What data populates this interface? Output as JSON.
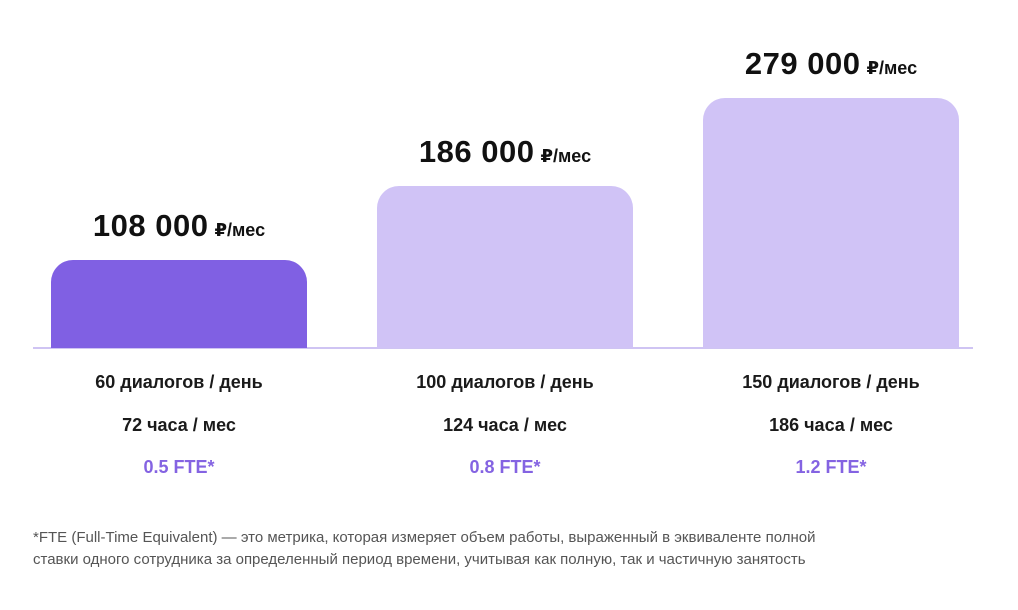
{
  "chart_data": {
    "type": "bar",
    "categories": [
      "60 диалогов / день",
      "100 диалогов / день",
      "150 диалогов / день"
    ],
    "values": [
      108000,
      186000,
      279000
    ],
    "value_labels": [
      "108 000",
      "186 000",
      "279 000"
    ],
    "unit": "₽/мес",
    "hours": [
      "72 часа / мес",
      "124 часа / мес",
      "186 часа / мес"
    ],
    "fte": [
      "0.5 FTE*",
      "0.8 FTE*",
      "1.2 FTE*"
    ],
    "colors": [
      "#8060e3",
      "#d0c3f6",
      "#d0c3f6"
    ],
    "fte_color": "#8463e2",
    "axis_color": "#cfc4f3",
    "grid": false,
    "legend": "none",
    "title": "",
    "xlabel": "",
    "ylabel": ""
  },
  "footnote": {
    "line1": "*FTE (Full-Time Equivalent) — это метрика, которая измеряет объем работы, выраженный в эквиваленте полной",
    "line2": "ставки одного сотрудника за определенный период времени, учитывая как полную, так и частичную занятость"
  }
}
